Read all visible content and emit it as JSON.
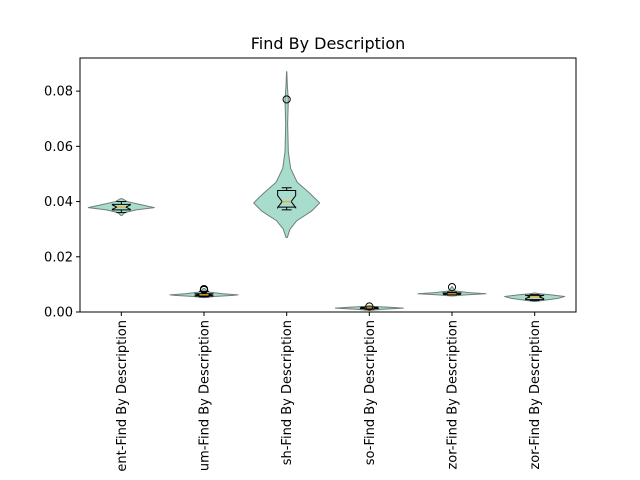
{
  "chart_data": {
    "type": "violin",
    "title": "Find By Description",
    "xlabel": "",
    "ylabel": "",
    "ylim": [
      0,
      0.092
    ],
    "yticks": [
      0.0,
      0.02,
      0.04,
      0.06,
      0.08
    ],
    "ytick_labels": [
      "0.00",
      "0.02",
      "0.04",
      "0.06",
      "0.08"
    ],
    "grid": false,
    "colors": {
      "violin_fill": "#a8dccc",
      "violin_edge": "#6f7f7a",
      "median": "#f5a623",
      "box": "#000000"
    },
    "categories": [
      "ent-Find By Description",
      "um-Find By Description",
      "sh-Find By Description",
      "so-Find By Description",
      "zor-Find By Description",
      "zor-Find By Description"
    ],
    "series": [
      {
        "min": 0.035,
        "q1": 0.037,
        "median": 0.038,
        "q3": 0.039,
        "max": 0.041,
        "whisker_low": 0.036,
        "whisker_high": 0.04,
        "outliers": [],
        "density": [
          [
            0.035,
            0.02
          ],
          [
            0.036,
            0.1
          ],
          [
            0.037,
            0.45
          ],
          [
            0.0378,
            1.0
          ],
          [
            0.039,
            0.55
          ],
          [
            0.04,
            0.18
          ],
          [
            0.041,
            0.03
          ]
        ],
        "max_halfwidth": 33
      },
      {
        "min": 0.0055,
        "q1": 0.0058,
        "median": 0.0062,
        "q3": 0.0066,
        "max": 0.0085,
        "whisker_low": 0.0055,
        "whisker_high": 0.0075,
        "outliers": [
          0.008,
          0.0083
        ],
        "density": [
          [
            0.0052,
            0.02
          ],
          [
            0.0056,
            0.3
          ],
          [
            0.006,
            0.85
          ],
          [
            0.0062,
            1.0
          ],
          [
            0.0066,
            0.55
          ],
          [
            0.0072,
            0.15
          ],
          [
            0.008,
            0.06
          ],
          [
            0.0085,
            0.02
          ]
        ],
        "max_halfwidth": 34
      },
      {
        "min": 0.027,
        "q1": 0.038,
        "median": 0.04,
        "q3": 0.044,
        "max": 0.087,
        "whisker_low": 0.037,
        "whisker_high": 0.045,
        "outliers": [
          0.077
        ],
        "density": [
          [
            0.027,
            0.02
          ],
          [
            0.03,
            0.1
          ],
          [
            0.033,
            0.3
          ],
          [
            0.0365,
            0.75
          ],
          [
            0.0395,
            1.0
          ],
          [
            0.043,
            0.7
          ],
          [
            0.047,
            0.32
          ],
          [
            0.052,
            0.12
          ],
          [
            0.058,
            0.05
          ],
          [
            0.068,
            0.03
          ],
          [
            0.077,
            0.05
          ],
          [
            0.082,
            0.02
          ],
          [
            0.087,
            0.005
          ]
        ],
        "max_halfwidth": 33
      },
      {
        "min": 0.0008,
        "q1": 0.0012,
        "median": 0.0015,
        "q3": 0.0017,
        "max": 0.0022,
        "whisker_low": 0.001,
        "whisker_high": 0.0018,
        "outliers": [
          0.002
        ],
        "density": [
          [
            0.0006,
            0.02
          ],
          [
            0.001,
            0.4
          ],
          [
            0.0014,
            1.0
          ],
          [
            0.0017,
            0.6
          ],
          [
            0.002,
            0.15
          ],
          [
            0.0023,
            0.02
          ]
        ],
        "max_halfwidth": 34
      },
      {
        "min": 0.006,
        "q1": 0.0064,
        "median": 0.0066,
        "q3": 0.0069,
        "max": 0.0092,
        "whisker_low": 0.0062,
        "whisker_high": 0.0072,
        "outliers": [
          0.009
        ],
        "density": [
          [
            0.0058,
            0.02
          ],
          [
            0.0062,
            0.4
          ],
          [
            0.0066,
            1.0
          ],
          [
            0.007,
            0.5
          ],
          [
            0.0076,
            0.1
          ],
          [
            0.0085,
            0.04
          ],
          [
            0.0092,
            0.01
          ]
        ],
        "max_halfwidth": 34
      },
      {
        "min": 0.004,
        "q1": 0.0045,
        "median": 0.0055,
        "q3": 0.006,
        "max": 0.0068,
        "whisker_low": 0.0042,
        "whisker_high": 0.0063,
        "outliers": [],
        "density": [
          [
            0.0038,
            0.02
          ],
          [
            0.0043,
            0.35
          ],
          [
            0.005,
            0.8
          ],
          [
            0.0056,
            1.0
          ],
          [
            0.0062,
            0.55
          ],
          [
            0.0066,
            0.15
          ],
          [
            0.0069,
            0.02
          ]
        ],
        "max_halfwidth": 30
      }
    ]
  }
}
